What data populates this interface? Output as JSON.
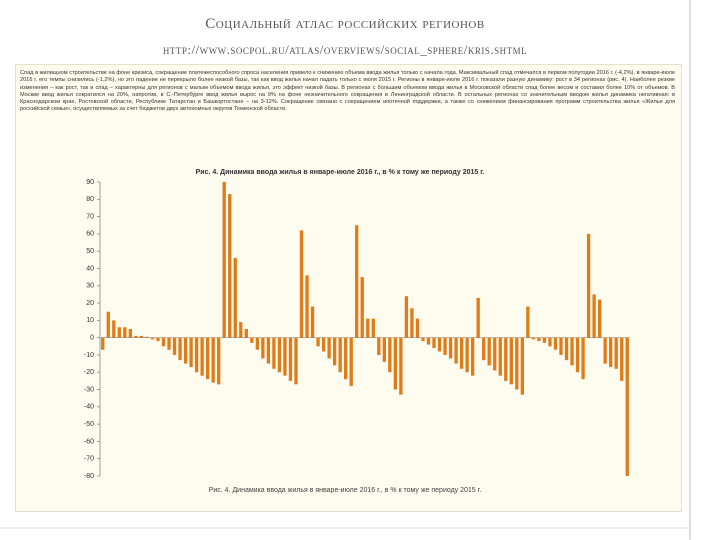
{
  "header": {
    "title": "Социальный атлас российских регионов",
    "url": "http://www.socpol.ru/atlas/overviews/social_sphere/kris.shtml"
  },
  "text": "Спад в жилищном строительстве на фоне кризиса, сокращение платежеспособного спроса населения привело к снижению объема ввода жилья только с начала года. Максимальный спад отмечался в первом полугодии 2016 г. (-4,2%), в январе-июле 2016 г. его темпы снизились (-1,2%), но это падение не перекрыло более низкой базы, так как ввод жилья начал падать только с июля 2015 г. Регионы в январе-июле 2016 г. показали разную динамику: рост в 34 регионах (рис. 4). Наиболее резкие изменения – как рост, так и спад – характерны для регионов с малым объемом ввода жилья, это эффект низкой базы. В регионах с большим объемом ввода жилья в Московской области спад более весом и составил более 10% от объемов. В Москве ввод жилья сократился на 20%, напротив, в С.-Петербурге ввод жилья вырос на 9% на фоне незначительного сокращения в Ленинградской области. В остальных регионах со значительным вводом жилья динамика негативная: в Краснодарском крае, Ростовской области, Республике Татарстан и Башкортостане – на 3-12%. Сокращение связано с сокращением ипотечной поддержки, а также со снижением финансирования программ строительства жилья «Жилье для российской семьи», осуществляемых за счет бюджетов двух автономных округов Тюменской области.",
  "chart_data": {
    "type": "bar",
    "title": "Рис. 4. Динамика ввода жилья в январе-июле 2016 г., в % к тому же периоду 2015 г.",
    "caption": "Рис. 4. Динамика ввода жилья в январе-июле 2016 г., в % к тому же периоду 2015 г.",
    "categories": [
      null,
      null,
      null,
      null,
      null,
      null,
      null,
      null,
      null,
      null,
      null,
      null,
      null,
      null,
      null,
      null,
      null,
      null,
      null,
      null,
      null,
      null,
      null,
      null,
      null,
      null,
      null,
      null,
      null,
      null,
      null,
      null,
      null,
      null,
      null,
      null,
      null,
      null,
      null,
      null,
      null,
      null,
      null,
      null,
      null,
      null,
      null,
      null,
      null,
      null,
      null,
      null,
      null,
      null,
      null,
      null,
      null,
      null,
      null,
      null,
      null,
      null,
      null,
      null,
      null,
      null,
      null,
      null,
      null,
      null,
      null,
      null,
      null,
      null,
      null,
      null,
      null,
      null,
      null,
      null,
      null,
      null,
      null,
      null,
      null,
      null,
      null,
      null,
      null,
      null,
      null,
      null,
      null,
      null,
      null,
      null
    ],
    "values": [
      -7,
      15,
      10,
      6,
      6,
      5,
      1,
      1,
      0.5,
      -1,
      -2,
      -5,
      -7,
      -10,
      -13,
      -15,
      -17,
      -20,
      -22,
      -24,
      -26,
      -27,
      90,
      83,
      46,
      9,
      5,
      -3,
      -7,
      -12,
      -15,
      -18,
      -20,
      -22,
      -25,
      -27,
      62,
      36,
      18,
      -5,
      -8,
      -12,
      -16,
      -20,
      -24,
      -28,
      65,
      35,
      11,
      11,
      -10,
      -14,
      -20,
      -30,
      -33,
      24,
      17,
      11,
      -2,
      -4,
      -6,
      -8,
      -10,
      -12,
      -15,
      -18,
      -20,
      -22,
      23,
      -13,
      -16,
      -19,
      -22,
      -25,
      -27,
      -30,
      -33,
      18,
      -1,
      -2,
      -3,
      -5,
      -7,
      -10,
      -13,
      -16,
      -20,
      -24,
      60,
      25,
      22,
      -15,
      -17,
      -18,
      -25,
      -80
    ],
    "color": "#e07b1a",
    "ylim": [
      -80,
      90
    ],
    "yticks": [
      90,
      80,
      70,
      60,
      50,
      40,
      30,
      20,
      10,
      0,
      -10,
      -20,
      -30,
      -40,
      -50,
      -60,
      -70,
      -80
    ],
    "grid": false
  }
}
